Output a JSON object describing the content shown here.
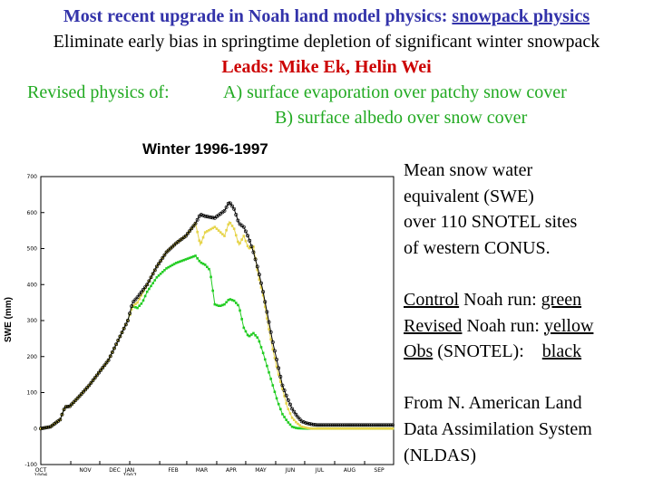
{
  "header": {
    "line1_prefix": "Most recent upgrade in Noah land model physics: ",
    "line1_link": "snowpack physics",
    "line2": "Eliminate early bias in springtime depletion of significant winter snowpack",
    "line3": "Leads: Mike Ek, Helin Wei",
    "line4_left": "Revised physics of:",
    "line4_a": "A) surface evaporation over patchy snow cover",
    "line5_b": "B) surface albedo over snow cover"
  },
  "side": {
    "desc1": "Mean snow water",
    "desc2": "equivalent (SWE)",
    "desc3": "over 110 SNOTEL sites",
    "desc4": "of western CONUS.",
    "control_name": "Control",
    "control_rest": " Noah run: ",
    "control_color": "green",
    "revised_name": "Revised",
    "revised_rest": " Noah run: ",
    "revised_color": "yellow",
    "obs_name": "Obs",
    "obs_rest": " (SNOTEL):    ",
    "obs_color": "black",
    "src1": "From N. American Land",
    "src2": "Data Assimilation System",
    "src3": "(NLDAS)"
  },
  "chart_data": {
    "type": "line",
    "title": "Winter 1996-1997",
    "ylabel": "SWE (mm)",
    "xlabel": "",
    "ylim": [
      -100,
      700
    ],
    "xlim": [
      0,
      365
    ],
    "yticks": [
      "-100",
      "0",
      "100",
      "200",
      "300",
      "400",
      "500",
      "600",
      "700"
    ],
    "month_days": [
      0,
      31,
      61,
      92,
      123,
      151,
      182,
      212,
      243,
      273,
      304,
      335
    ],
    "month_labels": [
      "OCT\n1996",
      "NOV",
      "DEC",
      "JAN\n1997",
      "FEB",
      "MAR",
      "APR",
      "MAY",
      "JUN",
      "JUL",
      "AUG",
      "SEP"
    ],
    "series": [
      {
        "name": "Control",
        "color": "#22cc22",
        "x": [
          0,
          10,
          20,
          25,
          30,
          40,
          50,
          60,
          70,
          80,
          90,
          95,
          100,
          105,
          110,
          120,
          130,
          140,
          150,
          155,
          160,
          165,
          170,
          175,
          180,
          185,
          190,
          195,
          200,
          205,
          210,
          215,
          220,
          225,
          230,
          235,
          240,
          245,
          250,
          255,
          260,
          265,
          275,
          290,
          300,
          320,
          340,
          365
        ],
        "values": [
          0,
          5,
          25,
          60,
          62,
          90,
          120,
          155,
          190,
          245,
          300,
          340,
          335,
          350,
          380,
          420,
          445,
          460,
          470,
          475,
          480,
          462,
          455,
          440,
          345,
          340,
          345,
          360,
          355,
          340,
          280,
          255,
          265,
          250,
          210,
          165,
          120,
          75,
          40,
          20,
          5,
          1,
          0,
          0,
          0,
          0,
          0,
          0
        ]
      },
      {
        "name": "Revised",
        "color": "#e6d44a",
        "x": [
          0,
          10,
          20,
          25,
          30,
          40,
          50,
          60,
          70,
          80,
          90,
          95,
          100,
          110,
          120,
          130,
          140,
          150,
          160,
          165,
          170,
          180,
          190,
          195,
          200,
          205,
          210,
          215,
          220,
          225,
          230,
          235,
          240,
          245,
          250,
          255,
          260,
          265,
          270,
          275,
          280,
          290,
          300,
          320,
          340,
          365
        ],
        "values": [
          0,
          5,
          25,
          60,
          62,
          90,
          120,
          155,
          190,
          245,
          300,
          340,
          350,
          400,
          450,
          490,
          515,
          535,
          570,
          510,
          545,
          560,
          535,
          575,
          555,
          510,
          535,
          500,
          505,
          425,
          370,
          290,
          220,
          160,
          110,
          60,
          30,
          15,
          5,
          2,
          0,
          0,
          0,
          0,
          0,
          0
        ]
      },
      {
        "name": "Obs",
        "color": "#000000",
        "x": [
          0,
          10,
          20,
          25,
          30,
          40,
          50,
          60,
          70,
          80,
          90,
          95,
          100,
          110,
          120,
          130,
          140,
          150,
          160,
          165,
          170,
          180,
          190,
          195,
          200,
          205,
          210,
          215,
          220,
          225,
          230,
          235,
          240,
          245,
          250,
          255,
          260,
          265,
          270,
          275,
          280,
          285,
          290,
          300,
          320,
          340,
          365
        ],
        "values": [
          0,
          5,
          25,
          60,
          62,
          90,
          120,
          155,
          190,
          245,
          300,
          350,
          365,
          400,
          450,
          490,
          515,
          535,
          570,
          595,
          590,
          585,
          605,
          630,
          610,
          570,
          560,
          530,
          490,
          440,
          380,
          310,
          240,
          180,
          120,
          85,
          55,
          35,
          20,
          15,
          12,
          10,
          10,
          10,
          10,
          10,
          10
        ]
      }
    ]
  }
}
